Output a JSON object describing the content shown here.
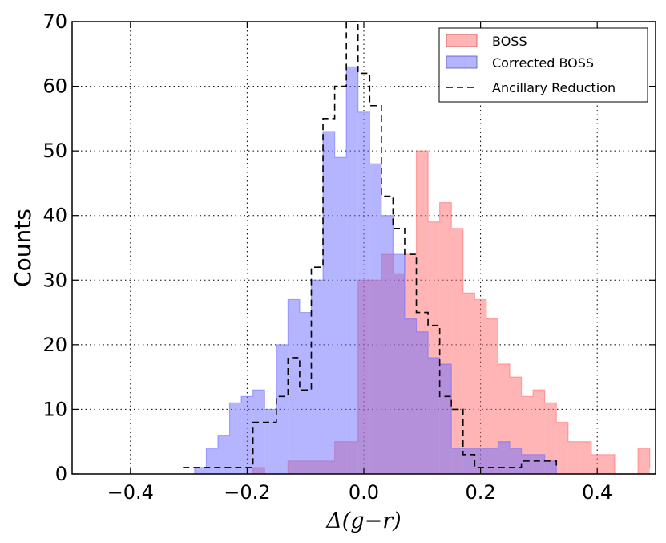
{
  "chart_data": {
    "type": "histogram",
    "xlabel": "Δ(g−r)",
    "ylabel": "Counts",
    "xlim": [
      -0.5,
      0.5
    ],
    "ylim": [
      0,
      70
    ],
    "grid": true,
    "legend_position": "top-right",
    "bin_edges": [
      -0.29,
      -0.27,
      -0.25,
      -0.23,
      -0.21,
      -0.19,
      -0.17,
      -0.15,
      -0.13,
      -0.11,
      -0.09,
      -0.07,
      -0.05,
      -0.03,
      -0.01,
      0.01,
      0.03,
      0.05,
      0.07,
      0.09,
      0.11,
      0.13,
      0.15,
      0.17,
      0.19,
      0.21,
      0.23,
      0.25,
      0.27,
      0.29,
      0.31,
      0.33,
      0.35,
      0.37,
      0.39,
      0.41,
      0.43,
      0.45,
      0.47,
      0.49
    ],
    "series": [
      {
        "name": "BOSS",
        "style": "filled",
        "color": "#ff6b6b",
        "counts": [
          0,
          0,
          0,
          0,
          0,
          1,
          0,
          0,
          2,
          2,
          2,
          2,
          5,
          5,
          30,
          30,
          34,
          31,
          34,
          50,
          39,
          42,
          38,
          28,
          27,
          24,
          17,
          15,
          12,
          13,
          11,
          8,
          5,
          5,
          3,
          3,
          0,
          0,
          4,
          1
        ],
        "visible_counts_note": "counts for bins partially hidden by overlap"
      },
      {
        "name": "Corrected BOSS",
        "style": "filled",
        "color": "#6b6bff",
        "counts": [
          1,
          4,
          6,
          11,
          12,
          13,
          10,
          20,
          27,
          25,
          30,
          53,
          49,
          63,
          56,
          48,
          40,
          34,
          24,
          22,
          18,
          17,
          4,
          4,
          4,
          4,
          5,
          4,
          3,
          3,
          2,
          0,
          0,
          0,
          0,
          0,
          0,
          0,
          0,
          0
        ]
      },
      {
        "name": "Ancillary Reduction",
        "style": "dashed-step",
        "color": "#000000",
        "bin_edges": [
          -0.31,
          -0.29,
          -0.27,
          -0.25,
          -0.23,
          -0.21,
          -0.19,
          -0.17,
          -0.15,
          -0.13,
          -0.11,
          -0.09,
          -0.07,
          -0.05,
          -0.03,
          -0.01,
          0.01,
          0.03,
          0.05,
          0.07,
          0.09,
          0.11,
          0.13,
          0.15,
          0.17,
          0.19,
          0.21,
          0.23,
          0.25,
          0.27,
          0.29,
          0.31,
          0.33
        ],
        "counts": [
          1,
          1,
          1,
          1,
          1,
          1,
          8,
          8,
          12,
          18,
          13,
          32,
          55,
          60,
          70,
          62,
          57,
          43,
          38,
          34,
          25,
          23,
          12,
          10,
          3,
          1,
          1,
          1,
          1,
          2,
          2,
          2,
          1
        ]
      }
    ],
    "series_display": {
      "boss": {
        "name": "BOSS",
        "color": "#ff6b6b"
      },
      "corrected": {
        "name": "Corrected BOSS",
        "color": "#6b6bff"
      },
      "ancillary": {
        "name": "Ancillary Reduction",
        "color": "#000000"
      }
    },
    "xticks": [
      "−0.4",
      "−0.2",
      "0.0",
      "0.2",
      "0.4"
    ],
    "xtick_values": [
      -0.4,
      -0.2,
      0.0,
      0.2,
      0.4
    ],
    "yticks": [
      "0",
      "10",
      "20",
      "30",
      "40",
      "50",
      "60",
      "70"
    ],
    "ytick_values": [
      0,
      10,
      20,
      30,
      40,
      50,
      60,
      70
    ]
  }
}
